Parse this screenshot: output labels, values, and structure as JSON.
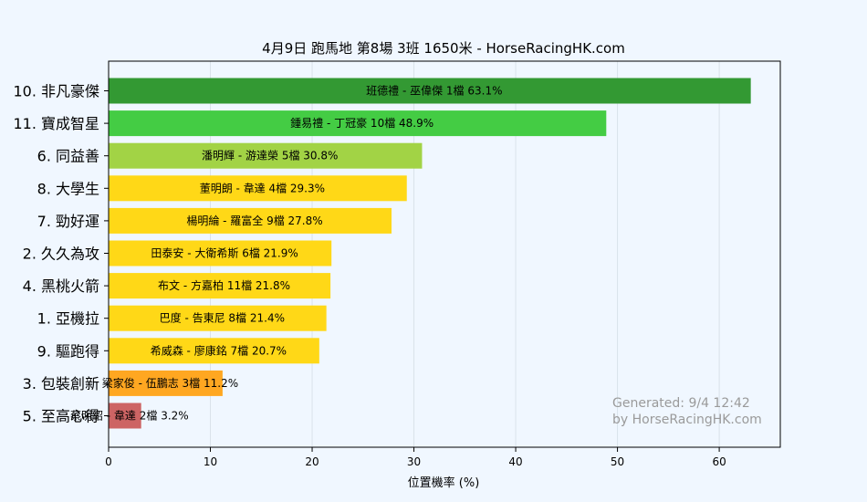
{
  "chart_data": {
    "type": "bar",
    "orientation": "horizontal",
    "title": "4月9日  跑馬地  第8場  3班  1650米 - HorseRacingHK.com",
    "xlabel": "位置機率 (%)",
    "ylabel": "",
    "xlim": [
      0,
      66
    ],
    "xticks": [
      0,
      10,
      20,
      30,
      40,
      50,
      60
    ],
    "grid": "vertical",
    "categories": [
      "10. 非凡豪傑",
      "11. 寶成智星",
      "6. 同益善",
      "8. 大學生",
      "7. 勁好運",
      "2. 久久為攻",
      "4. 黑桃火箭",
      "1. 亞機拉",
      "9. 驅跑得",
      "3. 包裝創新",
      "5. 至高心得"
    ],
    "values": [
      63.1,
      48.9,
      30.8,
      29.3,
      27.8,
      21.9,
      21.8,
      21.4,
      20.7,
      11.2,
      3.2
    ],
    "bar_labels": [
      "班德禮 - 巫偉傑 1檔  63.1%",
      "鍾易禮 - 丁冠豪 10檔  48.9%",
      "潘明輝 - 游達榮 5檔  30.8%",
      "董明朗 - 韋達 4檔  29.3%",
      "楊明綸 - 羅富全 9檔  27.8%",
      "田泰安 - 大衛希斯 6檔  21.9%",
      "布文 - 方嘉柏 11檔  21.8%",
      "巴度 - 告東尼 8檔  21.4%",
      "希威森 - 廖康銘 7檔  20.7%",
      "梁家俊 - 伍鵬志 3檔  11.2%",
      "蔡明紹 - 韋達 2檔  3.2%"
    ],
    "colors": [
      "#339933",
      "#44cc44",
      "#a2d345",
      "#ffd817",
      "#ffd817",
      "#ffd817",
      "#ffd817",
      "#ffd817",
      "#ffd817",
      "#ffa721",
      "#cd6464"
    ]
  },
  "watermark": {
    "line1": "Generated: 9/4 12:42",
    "line2": "by HorseRacingHK.com"
  }
}
